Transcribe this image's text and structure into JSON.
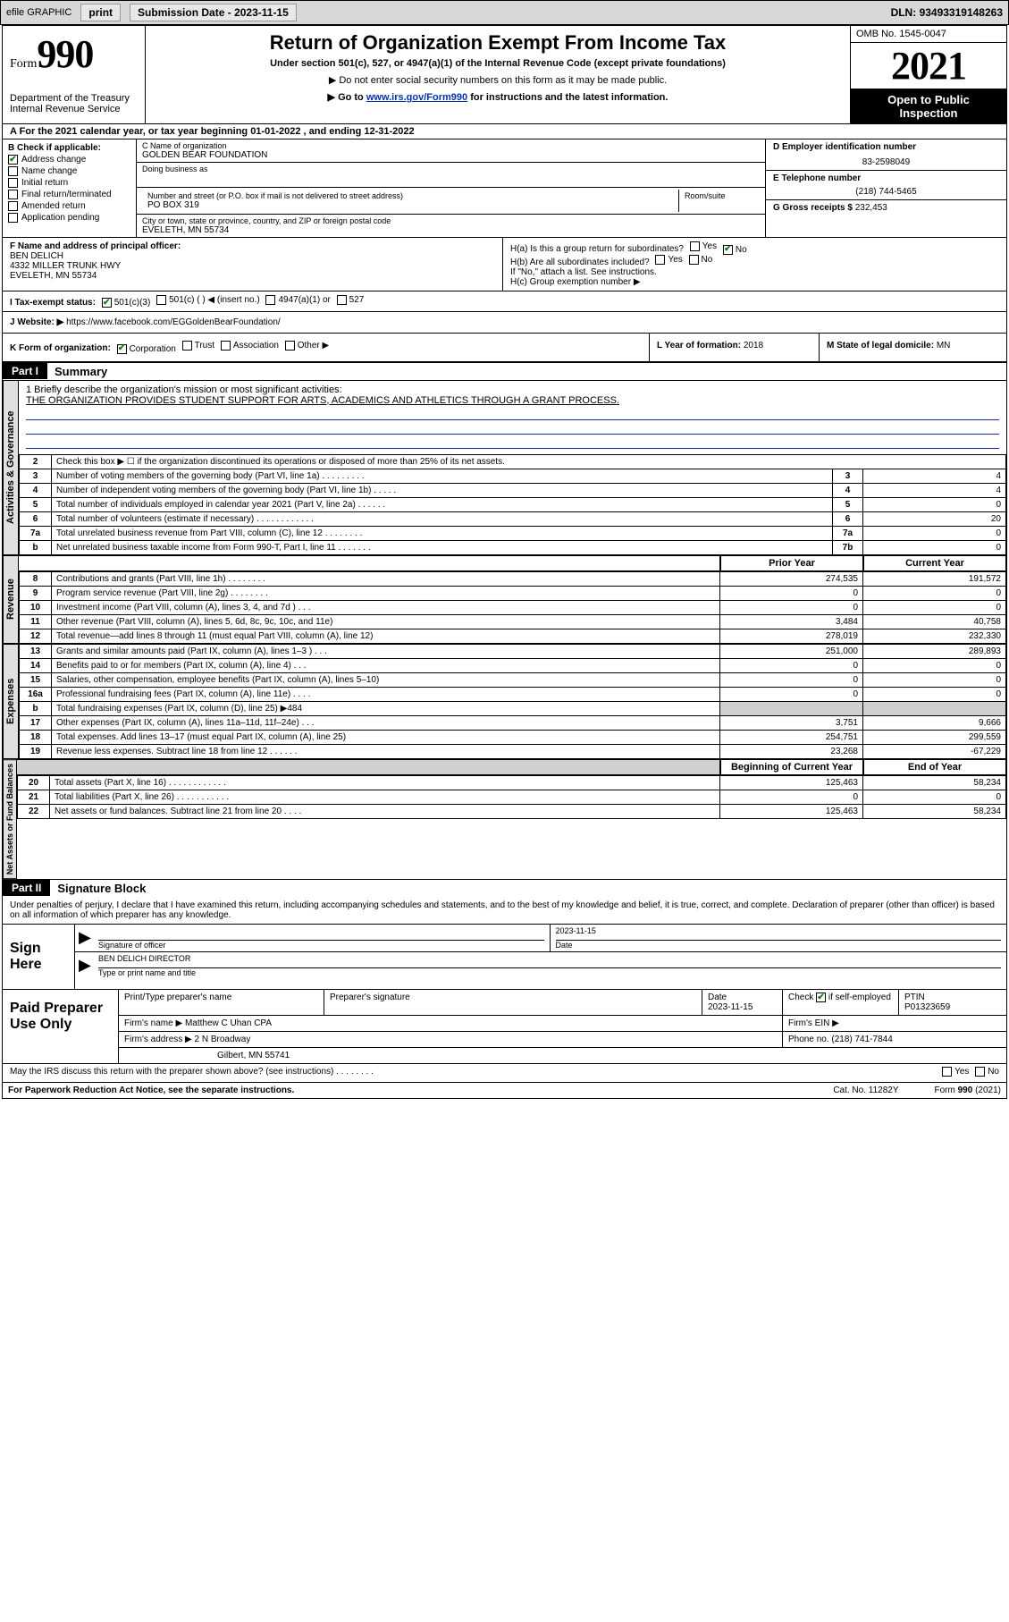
{
  "topbar": {
    "efile": "efile GRAPHIC",
    "print": "print",
    "submission_prefix": "Submission Date - ",
    "submission_date": "2023-11-15",
    "dln_prefix": "DLN: ",
    "dln": "93493319148263"
  },
  "header": {
    "form_word": "Form",
    "form_num": "990",
    "dept": "Department of the Treasury",
    "irs": "Internal Revenue Service",
    "title": "Return of Organization Exempt From Income Tax",
    "subsection": "Under section 501(c), 527, or 4947(a)(1) of the Internal Revenue Code (except private foundations)",
    "note1": "▶ Do not enter social security numbers on this form as it may be made public.",
    "note2_pre": "▶ Go to ",
    "note2_link": "www.irs.gov/Form990",
    "note2_post": " for instructions and the latest information.",
    "omb": "OMB No. 1545-0047",
    "year": "2021",
    "inspection1": "Open to Public",
    "inspection2": "Inspection"
  },
  "rowA": "A  For the 2021 calendar year, or tax year beginning 01-01-2022    , and ending 12-31-2022",
  "colB": {
    "hdr": "B Check if applicable:",
    "items": [
      "Address change",
      "Name change",
      "Initial return",
      "Final return/terminated",
      "Amended return",
      "Application pending"
    ],
    "checked_idx": 0
  },
  "org": {
    "c_lab": "C Name of organization",
    "name": "GOLDEN BEAR FOUNDATION",
    "dba_lab": "Doing business as",
    "dba": "",
    "street_lab": "Number and street (or P.O. box if mail is not delivered to street address)",
    "room_lab": "Room/suite",
    "street": "PO BOX 319",
    "city_lab": "City or town, state or province, country, and ZIP or foreign postal code",
    "city": "EVELETH, MN  55734"
  },
  "colD": {
    "lab": "D Employer identification number",
    "val": "83-2598049"
  },
  "colE": {
    "lab": "E Telephone number",
    "val": "(218) 744-5465"
  },
  "colG": {
    "lab": "G Gross receipts $ ",
    "val": "232,453"
  },
  "rowF": {
    "lab": "F  Name and address of principal officer:",
    "name": "BEN DELICH",
    "addr1": "4332 MILLER TRUNK HWY",
    "addr2": "EVELETH, MN  55734"
  },
  "rowH": {
    "ha": "H(a)  Is this a group return for subordinates?",
    "hb": "H(b)  Are all subordinates included?",
    "hb_note": "If \"No,\" attach a list. See instructions.",
    "hc": "H(c)  Group exemption number ▶",
    "yes": "Yes",
    "no": "No"
  },
  "rowI": {
    "lab": "I     Tax-exempt status:",
    "o1": "501(c)(3)",
    "o2": "501(c) (  ) ◀ (insert no.)",
    "o3": "4947(a)(1) or",
    "o4": "527"
  },
  "rowJ": {
    "lab": "J    Website: ▶ ",
    "val": "https://www.facebook.com/EGGoldenBearFoundation/"
  },
  "rowK": {
    "lab": "K Form of organization:",
    "o1": "Corporation",
    "o2": "Trust",
    "o3": "Association",
    "o4": "Other ▶",
    "L_lab": "L Year of formation: ",
    "L_val": "2018",
    "M_lab": "M State of legal domicile: ",
    "M_val": "MN"
  },
  "part1": {
    "hdr": "Part I",
    "title": "Summary"
  },
  "mission": {
    "q1_pre": "1   Briefly describe the organization's mission or most significant activities:",
    "text": "THE ORGANIZATION PROVIDES STUDENT SUPPORT FOR ARTS, ACADEMICS AND ATHLETICS THROUGH A GRANT PROCESS."
  },
  "gov_lines": [
    {
      "n": "2",
      "t": "Check this box ▶ ☐  if the organization discontinued its operations or disposed of more than 25% of its net assets.",
      "box": "",
      "val": ""
    },
    {
      "n": "3",
      "t": "Number of voting members of the governing body (Part VI, line 1a)   .    .    .    .    .    .    .    .    .",
      "box": "3",
      "val": "4"
    },
    {
      "n": "4",
      "t": "Number of independent voting members of the governing body (Part VI, line 1b)    .    .    .    .    .",
      "box": "4",
      "val": "4"
    },
    {
      "n": "5",
      "t": "Total number of individuals employed in calendar year 2021 (Part V, line 2a)   .    .    .    .    .    .",
      "box": "5",
      "val": "0"
    },
    {
      "n": "6",
      "t": "Total number of volunteers (estimate if necessary)   .    .    .    .    .    .    .    .    .    .    .    .",
      "box": "6",
      "val": "20"
    },
    {
      "n": "7a",
      "t": "Total unrelated business revenue from Part VIII, column (C), line 12   .    .    .    .    .    .    .    .",
      "box": "7a",
      "val": "0"
    },
    {
      "n": "b",
      "t": "Net unrelated business taxable income from Form 990-T, Part I, line 11   .    .    .    .    .    .    .",
      "box": "7b",
      "val": "0"
    }
  ],
  "col_hdrs": {
    "prior": "Prior Year",
    "curr": "Current Year",
    "beg": "Beginning of Current Year",
    "end": "End of Year"
  },
  "revenue_lines": [
    {
      "n": "8",
      "t": "Contributions and grants (Part VIII, line 1h)    .    .    .    .    .    .    .    .",
      "p": "274,535",
      "c": "191,572"
    },
    {
      "n": "9",
      "t": "Program service revenue (Part VIII, line 2g)    .    .    .    .    .    .    .    .",
      "p": "0",
      "c": "0"
    },
    {
      "n": "10",
      "t": "Investment income (Part VIII, column (A), lines 3, 4, and 7d )    .    .    .",
      "p": "0",
      "c": "0"
    },
    {
      "n": "11",
      "t": "Other revenue (Part VIII, column (A), lines 5, 6d, 8c, 9c, 10c, and 11e)",
      "p": "3,484",
      "c": "40,758"
    },
    {
      "n": "12",
      "t": "Total revenue—add lines 8 through 11 (must equal Part VIII, column (A), line 12)",
      "p": "278,019",
      "c": "232,330"
    }
  ],
  "expense_lines": [
    {
      "n": "13",
      "t": "Grants and similar amounts paid (Part IX, column (A), lines 1–3 )    .    .    .",
      "p": "251,000",
      "c": "289,893"
    },
    {
      "n": "14",
      "t": "Benefits paid to or for members (Part IX, column (A), line 4)    .    .    .",
      "p": "0",
      "c": "0"
    },
    {
      "n": "15",
      "t": "Salaries, other compensation, employee benefits (Part IX, column (A), lines 5–10)",
      "p": "0",
      "c": "0"
    },
    {
      "n": "16a",
      "t": "Professional fundraising fees (Part IX, column (A), line 11e)    .    .    .    .",
      "p": "0",
      "c": "0"
    },
    {
      "n": "b",
      "t": "Total fundraising expenses (Part IX, column (D), line 25) ▶484",
      "p": "",
      "c": "",
      "gray": true
    },
    {
      "n": "17",
      "t": "Other expenses (Part IX, column (A), lines 11a–11d, 11f–24e)    .    .    .",
      "p": "3,751",
      "c": "9,666"
    },
    {
      "n": "18",
      "t": "Total expenses. Add lines 13–17 (must equal Part IX, column (A), line 25)",
      "p": "254,751",
      "c": "299,559"
    },
    {
      "n": "19",
      "t": "Revenue less expenses. Subtract line 18 from line 12    .    .    .    .    .    .",
      "p": "23,268",
      "c": "-67,229"
    }
  ],
  "net_lines": [
    {
      "n": "20",
      "t": "Total assets (Part X, line 16)    .    .    .    .    .    .    .    .    .    .    .    .",
      "p": "125,463",
      "c": "58,234"
    },
    {
      "n": "21",
      "t": "Total liabilities (Part X, line 26)    .    .    .    .    .    .    .    .    .    .    .",
      "p": "0",
      "c": "0"
    },
    {
      "n": "22",
      "t": "Net assets or fund balances. Subtract line 21 from line 20    .    .    .    .",
      "p": "125,463",
      "c": "58,234"
    }
  ],
  "section_labels": {
    "gov": "Activities & Governance",
    "rev": "Revenue",
    "exp": "Expenses",
    "net": "Net Assets or Fund Balances"
  },
  "part2": {
    "hdr": "Part II",
    "title": "Signature Block"
  },
  "declare": "Under penalties of perjury, I declare that I have examined this return, including accompanying schedules and statements, and to the best of my knowledge and belief, it is true, correct, and complete. Declaration of preparer (other than officer) is based on all information of which preparer has any knowledge.",
  "sign": {
    "here": "Sign Here",
    "sig_lab": "Signature of officer",
    "date_lab": "Date",
    "date": "2023-11-15",
    "name": "BEN DELICH  DIRECTOR",
    "name_lab": "Type or print name and title"
  },
  "paid": {
    "hdr": "Paid Preparer Use Only",
    "col1": "Print/Type preparer's name",
    "col2": "Preparer's signature",
    "col3": "Date",
    "col3v": "2023-11-15",
    "col4": "Check ☑ if self-employed",
    "col5": "PTIN",
    "col5v": "P01323659",
    "firm_name_lab": "Firm's name    ▶ ",
    "firm_name": "Matthew C Uhan CPA",
    "firm_ein_lab": "Firm's EIN ▶",
    "firm_addr_lab": "Firm's address ▶ ",
    "firm_addr1": "2 N Broadway",
    "firm_addr2": "Gilbert, MN  55741",
    "phone_lab": "Phone no. ",
    "phone": "(218) 741-7844"
  },
  "discuss": "May the IRS discuss this return with the preparer shown above? (see instructions)    .    .    .    .    .    .    .    .",
  "footer": {
    "left": "For Paperwork Reduction Act Notice, see the separate instructions.",
    "mid": "Cat. No. 11282Y",
    "right": "Form 990 (2021)"
  },
  "colors": {
    "link": "#0033aa",
    "checked": "#1a7a1a"
  }
}
